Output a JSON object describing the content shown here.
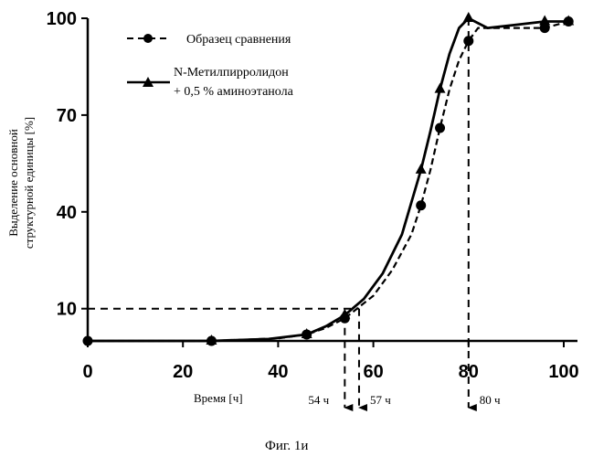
{
  "chart_data": {
    "type": "line",
    "xlabel": "Время [ч]",
    "ylabel_lines": [
      "Выделение основной",
      "структурной единицы [%]"
    ],
    "xlim": [
      0,
      105
    ],
    "ylim": [
      0,
      100
    ],
    "x_ticks": [
      0,
      20,
      40,
      60,
      80,
      100
    ],
    "y_ticks": [
      10,
      40,
      70,
      100
    ],
    "legend_position": "top-left",
    "series": [
      {
        "name": "Образец сравнения",
        "marker": "circle",
        "line_style": "dashed",
        "points": [
          [
            0,
            0
          ],
          [
            26,
            0
          ],
          [
            46,
            2
          ],
          [
            54,
            7
          ],
          [
            70,
            42
          ],
          [
            74,
            66
          ],
          [
            80,
            93
          ],
          [
            96,
            97
          ],
          [
            101,
            99
          ]
        ],
        "curve": [
          [
            0,
            0
          ],
          [
            26,
            0
          ],
          [
            40,
            0.8
          ],
          [
            46,
            2
          ],
          [
            50,
            4
          ],
          [
            54,
            7
          ],
          [
            60,
            14
          ],
          [
            64,
            22
          ],
          [
            68,
            33
          ],
          [
            70,
            42
          ],
          [
            72,
            53
          ],
          [
            74,
            66
          ],
          [
            76,
            78
          ],
          [
            78,
            87
          ],
          [
            80,
            93
          ],
          [
            82,
            97
          ],
          [
            88,
            97
          ],
          [
            96,
            97
          ],
          [
            101,
            99
          ]
        ]
      },
      {
        "name_lines": [
          "N-Метилпирролидон",
          "+ 0,5 % аминоэтанола"
        ],
        "marker": "triangle",
        "line_style": "solid",
        "points": [
          [
            26,
            0
          ],
          [
            46,
            2
          ],
          [
            54,
            8
          ],
          [
            70,
            53
          ],
          [
            74,
            78
          ],
          [
            80,
            100
          ],
          [
            96,
            99
          ],
          [
            101,
            99
          ]
        ],
        "curve": [
          [
            0,
            0
          ],
          [
            26,
            0
          ],
          [
            38,
            0.6
          ],
          [
            46,
            2
          ],
          [
            50,
            4.5
          ],
          [
            54,
            8
          ],
          [
            58,
            13
          ],
          [
            62,
            21
          ],
          [
            66,
            33
          ],
          [
            70,
            53
          ],
          [
            72,
            65
          ],
          [
            74,
            78
          ],
          [
            76,
            89
          ],
          [
            78,
            97
          ],
          [
            80,
            100
          ],
          [
            84,
            97
          ],
          [
            90,
            98
          ],
          [
            96,
            99
          ],
          [
            101,
            99
          ]
        ]
      }
    ],
    "reference_lines": [
      {
        "type": "horizontal",
        "y": 10,
        "from_x": 0,
        "to_x": 57
      },
      {
        "type": "vertical",
        "x": 54,
        "label": "54 ч"
      },
      {
        "type": "vertical",
        "x": 57,
        "label": "57 ч"
      },
      {
        "type": "vertical",
        "x": 80,
        "label": "80 ч"
      }
    ]
  },
  "caption": "Фиг. 1и"
}
